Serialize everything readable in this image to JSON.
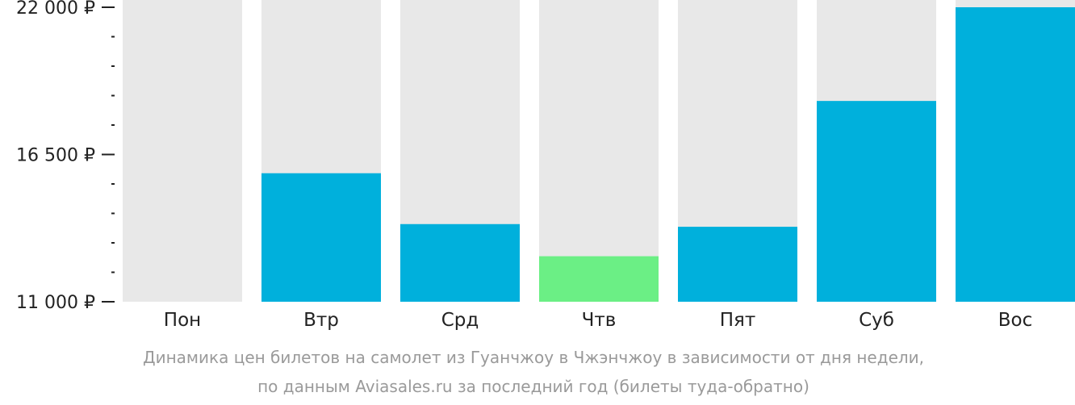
{
  "chart_data": {
    "type": "bar",
    "categories": [
      "Пон",
      "Втр",
      "Срд",
      "Чтв",
      "Пят",
      "Суб",
      "Вос"
    ],
    "values": [
      null,
      15800,
      13900,
      12700,
      13800,
      18500,
      22000
    ],
    "ylim": [
      11000,
      22000
    ],
    "yticks": [
      {
        "value": 11000,
        "label": "11 000 ₽"
      },
      {
        "value": 16500,
        "label": "16 500 ₽"
      },
      {
        "value": 22000,
        "label": "22 000 ₽"
      }
    ],
    "minor_ticks_between": 4,
    "colors": {
      "bar": "#00b0dc",
      "lowest_bar": "#6bef85",
      "background_bar": "#e8e8e8",
      "axis": "#222222"
    },
    "lowest_index": 3,
    "grid": false,
    "legend": "none"
  },
  "caption": {
    "line1": "Динамика цен билетов на самолет из Гуанчжоу в Чжэнчжоу в зависимости от дня недели,",
    "line2": "по данным Aviasales.ru за последний год (билеты туда-обратно)"
  }
}
